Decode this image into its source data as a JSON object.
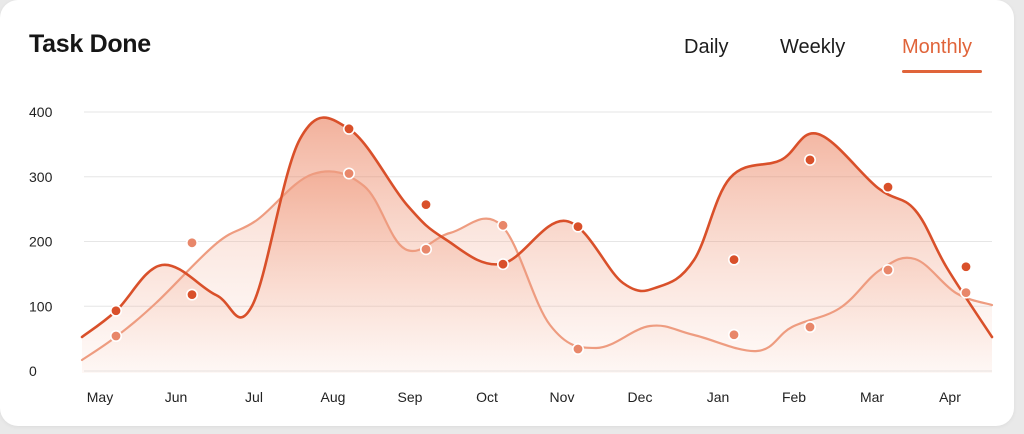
{
  "header": {
    "title": "Task Done",
    "tabs": [
      {
        "label": "Daily",
        "active": false
      },
      {
        "label": "Weekly",
        "active": false
      },
      {
        "label": "Monthly",
        "active": true
      }
    ]
  },
  "colors": {
    "accent": "#e0643a",
    "series_dark": "#d9502a",
    "series_light": "#ee9c80",
    "grid": "#e6e6e6"
  },
  "chart_data": {
    "type": "area",
    "categories": [
      "May",
      "Jun",
      "Jul",
      "Aug",
      "Sep",
      "Oct",
      "Nov",
      "Dec",
      "Jan",
      "Feb",
      "Mar",
      "Apr"
    ],
    "ylim": [
      0,
      400
    ],
    "yticks": [
      0,
      100,
      200,
      300,
      400
    ],
    "grid": true,
    "series": [
      {
        "color": "#d9502a",
        "points": [
          {
            "x": "May",
            "y": 93
          },
          {
            "x": "Jun",
            "y": 118
          },
          {
            "x": "Aug",
            "y": 374
          },
          {
            "x": "Sep",
            "y": 257
          },
          {
            "x": "Oct",
            "y": 165
          },
          {
            "x": "Nov",
            "y": 223
          },
          {
            "x": "Jan",
            "y": 172
          },
          {
            "x": "Feb",
            "y": 326
          },
          {
            "x": "Mar",
            "y": 284
          },
          {
            "x": "Apr",
            "y": 161
          }
        ]
      },
      {
        "color": "#ee9c80",
        "points": [
          {
            "x": "May",
            "y": 54
          },
          {
            "x": "Jun",
            "y": 198
          },
          {
            "x": "Aug",
            "y": 305
          },
          {
            "x": "Sep",
            "y": 188
          },
          {
            "x": "Oct",
            "y": 225
          },
          {
            "x": "Nov",
            "y": 34
          },
          {
            "x": "Jan",
            "y": 56
          },
          {
            "x": "Feb",
            "y": 68
          },
          {
            "x": "Mar",
            "y": 156
          },
          {
            "x": "Apr",
            "y": 121
          }
        ]
      }
    ]
  }
}
